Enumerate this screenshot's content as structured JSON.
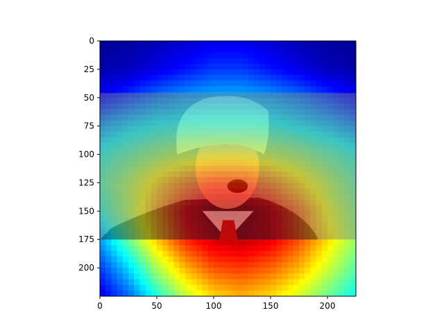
{
  "chart_data": {
    "type": "heatmap",
    "title": "",
    "xlabel": "",
    "ylabel": "",
    "xlim": [
      0,
      225
    ],
    "ylim": [
      225,
      0
    ],
    "xticks": [
      0,
      50,
      100,
      150,
      200
    ],
    "yticks": [
      0,
      25,
      50,
      75,
      100,
      125,
      150,
      175,
      200
    ],
    "colormap": "jet",
    "overlay": {
      "image_content": "photo of a man in a suit and tie, face and shoulders",
      "photo_region": {
        "x": [
          0,
          225
        ],
        "y": [
          46,
          175
        ]
      }
    },
    "heat_grid": {
      "x": [
        0,
        25,
        50,
        75,
        100,
        125,
        150,
        175,
        200,
        225
      ],
      "y": [
        0,
        25,
        50,
        75,
        100,
        125,
        150,
        175,
        200,
        225
      ],
      "values": [
        [
          0.02,
          0.03,
          0.05,
          0.08,
          0.1,
          0.1,
          0.08,
          0.05,
          0.03,
          0.02
        ],
        [
          0.04,
          0.06,
          0.1,
          0.14,
          0.18,
          0.18,
          0.14,
          0.1,
          0.06,
          0.04
        ],
        [
          0.12,
          0.18,
          0.24,
          0.28,
          0.3,
          0.3,
          0.28,
          0.24,
          0.18,
          0.12
        ],
        [
          0.28,
          0.34,
          0.38,
          0.4,
          0.4,
          0.4,
          0.4,
          0.36,
          0.32,
          0.26
        ],
        [
          0.4,
          0.46,
          0.52,
          0.56,
          0.58,
          0.58,
          0.56,
          0.52,
          0.46,
          0.4
        ],
        [
          0.45,
          0.55,
          0.66,
          0.76,
          0.82,
          0.82,
          0.76,
          0.66,
          0.56,
          0.46
        ],
        [
          0.4,
          0.55,
          0.72,
          0.88,
          0.96,
          0.96,
          0.9,
          0.78,
          0.62,
          0.5
        ],
        [
          0.28,
          0.48,
          0.68,
          0.84,
          0.92,
          0.94,
          0.9,
          0.8,
          0.66,
          0.52
        ],
        [
          0.18,
          0.34,
          0.54,
          0.7,
          0.8,
          0.82,
          0.78,
          0.7,
          0.58,
          0.46
        ],
        [
          0.1,
          0.22,
          0.4,
          0.56,
          0.66,
          0.7,
          0.66,
          0.58,
          0.48,
          0.38
        ]
      ]
    }
  }
}
